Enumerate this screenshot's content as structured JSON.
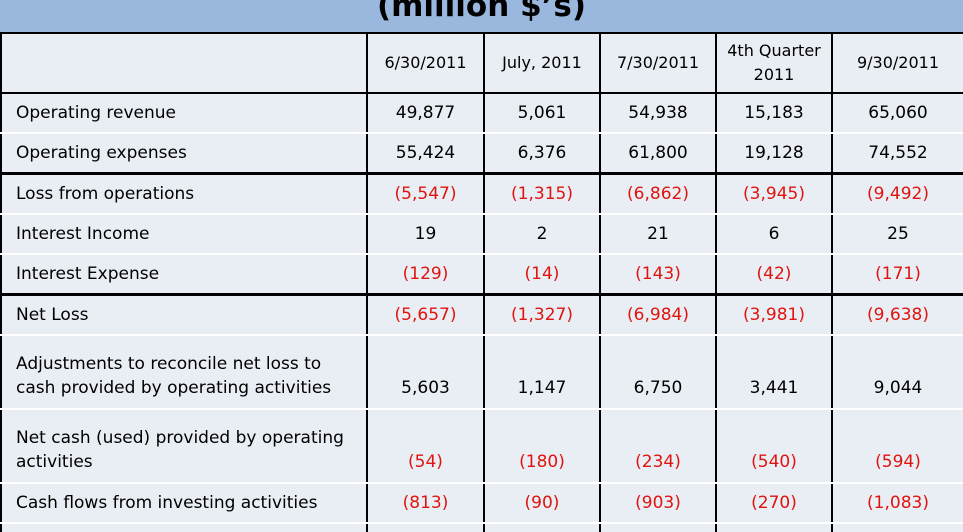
{
  "title": "(million $’s)",
  "columns": [
    "6/30/2011",
    "July, 2011",
    "7/30/2011",
    "4th Quarter 2011",
    "9/30/2011"
  ],
  "rows": [
    {
      "label": "Operating revenue",
      "values": [
        "49,877",
        "5,061",
        "54,938",
        "15,183",
        "65,060"
      ]
    },
    {
      "label": "Operating expenses",
      "values": [
        "55,424",
        "6,376",
        "61,800",
        "19,128",
        "74,552"
      ]
    },
    {
      "label": "Loss from operations",
      "values": [
        "(5,547)",
        "(1,315)",
        "(6,862)",
        "(3,945)",
        "(9,492)"
      ]
    },
    {
      "label": "Interest Income",
      "values": [
        "19",
        "2",
        "21",
        "6",
        "25"
      ]
    },
    {
      "label": "Interest Expense",
      "values": [
        "(129)",
        "(14)",
        "(143)",
        "(42)",
        "(171)"
      ]
    },
    {
      "label": "Net Loss",
      "values": [
        "(5,657)",
        "(1,327)",
        "(6,984)",
        "(3,981)",
        "(9,638)"
      ]
    },
    {
      "label": "Adjustments to reconcile net loss to cash provided by operating activities",
      "values": [
        "5,603",
        "1,147",
        "6,750",
        "3,441",
        "9,044"
      ]
    },
    {
      "label": "Net cash (used) provided by operating activities",
      "values": [
        "(54)",
        "(180)",
        "(234)",
        "(540)",
        "(594)"
      ]
    },
    {
      "label": "Cash flows from investing activities",
      "values": [
        "(813)",
        "(90)",
        "(903)",
        "(270)",
        "(1,083)"
      ]
    }
  ],
  "colors": {
    "negative": "#e0140f",
    "header_bg": "#9ab7de",
    "cell_bg": "#e9edf4"
  }
}
